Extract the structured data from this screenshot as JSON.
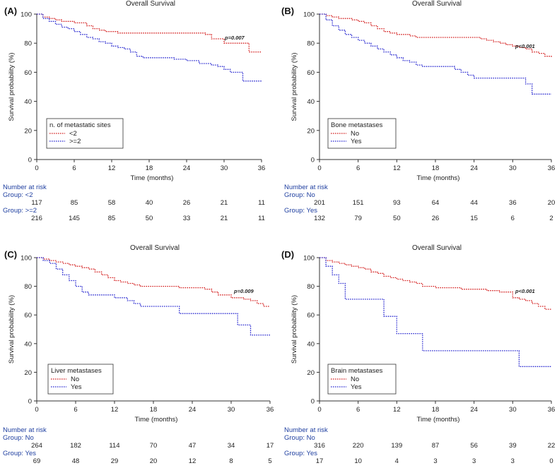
{
  "colors": {
    "red": "#d42020",
    "blue": "#2a2ad0",
    "axis": "#333333",
    "risk_blue": "#1f3fa0"
  },
  "chart_data": [
    {
      "type": "line",
      "panel": "(A)",
      "title": "Overall Survival",
      "xlabel": "Time (months)",
      "ylabel": "Survival probability (%)",
      "xlim": [
        0,
        36
      ],
      "ylim": [
        0,
        100
      ],
      "xticks": [
        "0",
        "6",
        "12",
        "18",
        "24",
        "30",
        "36"
      ],
      "yticks": [
        "0",
        "20",
        "40",
        "60",
        "80",
        "100"
      ],
      "p_value": "p=0.007",
      "legend_title": "n. of metastatic sites",
      "series": [
        {
          "name": "<2",
          "color": "red",
          "x": [
            0,
            1,
            2,
            3,
            4,
            5,
            6,
            7,
            8,
            9,
            10,
            11,
            12,
            13,
            14,
            15,
            16,
            17,
            18,
            20,
            22,
            24,
            26,
            27,
            28,
            30,
            32,
            33,
            34,
            35,
            36
          ],
          "y": [
            100,
            98,
            97,
            96,
            95,
            95,
            94,
            94,
            92,
            90,
            89,
            88,
            88,
            87,
            87,
            87,
            87,
            87,
            87,
            87,
            87,
            87,
            87,
            86,
            83,
            80,
            80,
            80,
            74,
            74,
            74
          ]
        },
        {
          "name": ">=2",
          "color": "blue",
          "x": [
            0,
            1,
            2,
            3,
            4,
            5,
            6,
            7,
            8,
            9,
            10,
            11,
            12,
            13,
            14,
            15,
            16,
            17,
            18,
            20,
            22,
            24,
            26,
            28,
            29,
            30,
            31,
            32,
            33,
            34,
            35,
            36
          ],
          "y": [
            100,
            97,
            95,
            93,
            91,
            90,
            88,
            86,
            84,
            83,
            81,
            80,
            78,
            77,
            76,
            74,
            71,
            70,
            70,
            70,
            69,
            68,
            66,
            65,
            64,
            62,
            60,
            60,
            54,
            54,
            54,
            54
          ]
        }
      ],
      "risk": {
        "header": "Number at risk",
        "groups": [
          {
            "label": "Group: <2",
            "values": [
              "117",
              "85",
              "58",
              "40",
              "26",
              "21",
              "11"
            ]
          },
          {
            "label": "Group: >=2",
            "values": [
              "216",
              "145",
              "85",
              "50",
              "33",
              "21",
              "11"
            ]
          }
        ]
      }
    },
    {
      "type": "line",
      "panel": "(B)",
      "title": "Overall Survival",
      "xlabel": "Time (months)",
      "ylabel": "Survival probability (%)",
      "xlim": [
        0,
        36
      ],
      "ylim": [
        0,
        100
      ],
      "xticks": [
        "0",
        "6",
        "12",
        "18",
        "24",
        "30",
        "36"
      ],
      "yticks": [
        "0",
        "20",
        "40",
        "60",
        "80",
        "100"
      ],
      "p_value": "p<0.001",
      "legend_title": "Bone metastases",
      "series": [
        {
          "name": "No",
          "color": "red",
          "x": [
            0,
            1,
            2,
            3,
            4,
            5,
            6,
            7,
            8,
            9,
            10,
            11,
            12,
            13,
            14,
            15,
            16,
            18,
            20,
            22,
            24,
            25,
            26,
            27,
            28,
            29,
            30,
            31,
            32,
            33,
            34,
            35,
            36
          ],
          "y": [
            100,
            99,
            98,
            97,
            97,
            96,
            95,
            94,
            92,
            90,
            88,
            87,
            86,
            86,
            85,
            84,
            84,
            84,
            84,
            84,
            84,
            83,
            82,
            81,
            80,
            79,
            78,
            77,
            76,
            74,
            73,
            71,
            70
          ]
        },
        {
          "name": "Yes",
          "color": "blue",
          "x": [
            0,
            1,
            2,
            3,
            4,
            5,
            6,
            7,
            8,
            9,
            10,
            11,
            12,
            13,
            14,
            15,
            16,
            18,
            20,
            21,
            22,
            23,
            24,
            26,
            28,
            30,
            32,
            33,
            34,
            36
          ],
          "y": [
            100,
            96,
            92,
            89,
            86,
            84,
            82,
            80,
            78,
            76,
            74,
            72,
            70,
            68,
            67,
            65,
            64,
            64,
            64,
            62,
            60,
            58,
            56,
            56,
            56,
            56,
            52,
            45,
            45,
            45
          ]
        }
      ],
      "risk": {
        "header": "Number at risk",
        "groups": [
          {
            "label": "Group: No",
            "values": [
              "201",
              "151",
              "93",
              "64",
              "44",
              "36",
              "20"
            ]
          },
          {
            "label": "Group: Yes",
            "values": [
              "132",
              "79",
              "50",
              "26",
              "15",
              "6",
              "2"
            ]
          }
        ]
      }
    },
    {
      "type": "line",
      "panel": "(C)",
      "title": "Overall Survival",
      "xlabel": "Time (months)",
      "ylabel": "Survival probability (%)",
      "xlim": [
        0,
        36
      ],
      "ylim": [
        0,
        100
      ],
      "xticks": [
        "0",
        "6",
        "12",
        "18",
        "24",
        "30",
        "36"
      ],
      "yticks": [
        "0",
        "20",
        "40",
        "60",
        "80",
        "100"
      ],
      "p_value": "p=0.009",
      "legend_title": "Liver metastases",
      "series": [
        {
          "name": "No",
          "color": "red",
          "x": [
            0,
            1,
            2,
            3,
            4,
            5,
            6,
            7,
            8,
            9,
            10,
            11,
            12,
            13,
            14,
            15,
            16,
            18,
            20,
            22,
            24,
            26,
            27,
            28,
            30,
            31,
            32,
            33,
            34,
            35,
            36
          ],
          "y": [
            100,
            99,
            98,
            97,
            96,
            95,
            94,
            93,
            92,
            90,
            88,
            86,
            84,
            83,
            82,
            81,
            80,
            80,
            80,
            79,
            79,
            78,
            76,
            74,
            72,
            72,
            71,
            70,
            68,
            66,
            66
          ]
        },
        {
          "name": "Yes",
          "color": "blue",
          "x": [
            0,
            1,
            2,
            3,
            4,
            5,
            6,
            7,
            8,
            10,
            12,
            14,
            15,
            16,
            18,
            20,
            22,
            24,
            26,
            28,
            30,
            31,
            32,
            33,
            34,
            36
          ],
          "y": [
            100,
            98,
            96,
            92,
            88,
            84,
            80,
            76,
            74,
            74,
            72,
            70,
            68,
            66,
            66,
            66,
            61,
            61,
            61,
            61,
            61,
            53,
            53,
            46,
            46,
            46
          ]
        }
      ],
      "risk": {
        "header": "Number at risk",
        "groups": [
          {
            "label": "Group: No",
            "values": [
              "264",
              "182",
              "114",
              "70",
              "47",
              "34",
              "17"
            ]
          },
          {
            "label": "Group: Yes",
            "values": [
              "69",
              "48",
              "29",
              "20",
              "12",
              "8",
              "5"
            ]
          }
        ]
      }
    },
    {
      "type": "line",
      "panel": "(D)",
      "title": "Overall Survival",
      "xlabel": "Time (months)",
      "ylabel": "Survival probability (%)",
      "xlim": [
        0,
        36
      ],
      "ylim": [
        0,
        100
      ],
      "xticks": [
        "0",
        "6",
        "12",
        "18",
        "24",
        "30",
        "36"
      ],
      "yticks": [
        "0",
        "20",
        "40",
        "60",
        "80",
        "100"
      ],
      "p_value": "p<0.001",
      "legend_title": "Brain metastases",
      "series": [
        {
          "name": "No",
          "color": "red",
          "x": [
            0,
            1,
            2,
            3,
            4,
            5,
            6,
            7,
            8,
            9,
            10,
            11,
            12,
            13,
            14,
            15,
            16,
            18,
            20,
            22,
            24,
            26,
            28,
            30,
            31,
            32,
            33,
            34,
            35,
            36
          ],
          "y": [
            100,
            98,
            97,
            96,
            95,
            94,
            93,
            92,
            90,
            89,
            87,
            86,
            85,
            84,
            83,
            82,
            80,
            79,
            79,
            78,
            78,
            77,
            76,
            72,
            71,
            70,
            68,
            66,
            64,
            64
          ]
        },
        {
          "name": "Yes",
          "color": "blue",
          "x": [
            0,
            1,
            2,
            3,
            4,
            8,
            10,
            11,
            12,
            15,
            16,
            18,
            24,
            30,
            31,
            32,
            36
          ],
          "y": [
            100,
            94,
            88,
            82,
            71,
            71,
            59,
            59,
            47,
            47,
            35,
            35,
            35,
            35,
            24,
            24,
            24
          ]
        }
      ],
      "risk": {
        "header": "Number at risk",
        "groups": [
          {
            "label": "Group: No",
            "values": [
              "316",
              "220",
              "139",
              "87",
              "56",
              "39",
              "22"
            ]
          },
          {
            "label": "Group: Yes",
            "values": [
              "17",
              "10",
              "4",
              "3",
              "3",
              "3",
              "0"
            ]
          }
        ]
      }
    }
  ]
}
